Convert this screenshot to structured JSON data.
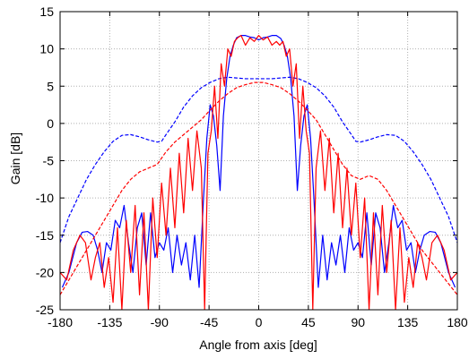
{
  "chart_data": {
    "type": "line",
    "title": "",
    "xlabel": "Angle from axis [deg]",
    "ylabel": "Gain [dB]",
    "xlim": [
      -180,
      180
    ],
    "ylim": [
      -25,
      15
    ],
    "xticks": [
      -180,
      -135,
      -90,
      -45,
      0,
      45,
      90,
      135,
      180
    ],
    "yticks": [
      -25,
      -20,
      -15,
      -10,
      -5,
      0,
      5,
      10,
      15
    ],
    "xtick_labels": [
      "-180",
      "-135",
      "-90",
      "-45",
      "0",
      "45",
      "90",
      "135",
      "180"
    ],
    "ytick_labels": [
      "-25",
      "-20",
      "-15",
      "-10",
      "-5",
      "0",
      "5",
      "10",
      "15"
    ],
    "grid": true,
    "legend": "none",
    "colors": {
      "blue": "#0000ff",
      "red": "#ff0000"
    },
    "series": [
      {
        "color": "#0000ff",
        "style": "solid",
        "x": [
          -178,
          -172,
          -165,
          -160,
          -155,
          -150,
          -146,
          -142,
          -138,
          -134,
          -130,
          -126,
          -122,
          -118,
          -114,
          -110,
          -106,
          -102,
          -98,
          -94,
          -90,
          -86,
          -82,
          -78,
          -74,
          -70,
          -66,
          -62,
          -58,
          -54,
          -50,
          -47,
          -44,
          -41,
          -38,
          -35,
          -32,
          -29,
          -26,
          -23,
          -20,
          -16,
          -12,
          -8,
          -4,
          0,
          4,
          8,
          12,
          16,
          20,
          23,
          26,
          29,
          32,
          35,
          38,
          41,
          44,
          47,
          50,
          54,
          58,
          62,
          66,
          70,
          74,
          78,
          82,
          86,
          90,
          94,
          98,
          102,
          106,
          110,
          114,
          118,
          122,
          126,
          130,
          134,
          138,
          142,
          146,
          150,
          155,
          160,
          165,
          172,
          178
        ],
        "y": [
          -22,
          -20,
          -16,
          -14.6,
          -14.5,
          -15,
          -17,
          -20,
          -16,
          -17,
          -13,
          -14,
          -11,
          -16,
          -20,
          -14,
          -12,
          -19,
          -12,
          -18,
          -16,
          -17,
          -14,
          -20,
          -15,
          -19,
          -16,
          -21,
          -15,
          -22,
          -10,
          -2,
          2.5,
          1,
          -3,
          -9,
          1,
          6,
          9,
          10.5,
          11.5,
          11.8,
          11.8,
          11.6,
          11.5,
          11.2,
          11.5,
          11.6,
          11.8,
          11.8,
          11.4,
          10.5,
          9,
          6,
          1,
          -9,
          -3,
          1,
          2.5,
          -2,
          -10,
          -22,
          -15,
          -21,
          -16,
          -19,
          -15,
          -20,
          -14,
          -17,
          -16,
          -18,
          -12,
          -19,
          -12,
          -14,
          -20,
          -16,
          -11,
          -14,
          -13,
          -17,
          -16,
          -20,
          -17,
          -15,
          -14.5,
          -14.6,
          -16,
          -20,
          -22
        ]
      },
      {
        "color": "#0000ff",
        "style": "dashed",
        "x": [
          -180,
          -172,
          -164,
          -156,
          -148,
          -140,
          -132,
          -124,
          -116,
          -108,
          -100,
          -92,
          -88,
          -84,
          -76,
          -68,
          -60,
          -52,
          -44,
          -36,
          -28,
          -20,
          -12,
          -4,
          0,
          4,
          12,
          20,
          28,
          36,
          44,
          52,
          60,
          68,
          76,
          84,
          88,
          92,
          100,
          108,
          116,
          124,
          132,
          140,
          148,
          156,
          164,
          172,
          180
        ],
        "y": [
          -16,
          -12.5,
          -10,
          -7.5,
          -5.5,
          -3.8,
          -2.4,
          -1.6,
          -1.5,
          -1.8,
          -2.2,
          -2.5,
          -2.4,
          -1.5,
          0.2,
          2.2,
          3.7,
          4.8,
          5.5,
          6.0,
          6.2,
          6.1,
          6.0,
          6.0,
          6.0,
          6.0,
          6.0,
          6.1,
          6.2,
          6.0,
          5.5,
          4.8,
          3.7,
          2.2,
          0.2,
          -1.5,
          -2.4,
          -2.5,
          -2.2,
          -1.8,
          -1.5,
          -1.6,
          -2.4,
          -3.8,
          -5.5,
          -7.5,
          -10,
          -12.5,
          -16
        ]
      },
      {
        "color": "#ff0000",
        "style": "solid",
        "x": [
          -180,
          -174,
          -168,
          -162,
          -157,
          -152,
          -148,
          -144,
          -140,
          -136,
          -132,
          -128,
          -124,
          -120,
          -116,
          -112,
          -108,
          -104,
          -100,
          -96,
          -92,
          -88,
          -84,
          -80,
          -76,
          -72,
          -68,
          -64,
          -60,
          -56,
          -52,
          -49,
          -46,
          -43,
          -40,
          -37,
          -34,
          -31,
          -28,
          -25,
          -22,
          -19,
          -16,
          -12,
          -8,
          -4,
          0,
          4,
          8,
          12,
          16,
          19,
          22,
          25,
          28,
          31,
          34,
          37,
          40,
          43,
          46,
          49,
          52,
          56,
          60,
          64,
          68,
          72,
          76,
          80,
          84,
          88,
          92,
          96,
          100,
          104,
          108,
          112,
          116,
          120,
          124,
          128,
          132,
          136,
          140,
          144,
          148,
          152,
          157,
          162,
          168,
          174,
          180
        ],
        "y": [
          -20,
          -21,
          -17,
          -15,
          -16,
          -21,
          -18,
          -16,
          -22,
          -18,
          -24,
          -14,
          -25,
          -13,
          -20,
          -11,
          -23,
          -12,
          -25,
          -10,
          -18,
          -8,
          -15,
          -6,
          -14,
          -4,
          -12,
          -2,
          -9,
          -1,
          -6,
          -25,
          -4,
          -1,
          5,
          -2,
          8,
          5,
          10,
          9,
          11,
          11.5,
          11.8,
          10.5,
          11.5,
          11.0,
          11.8,
          11.2,
          11.6,
          10.5,
          11.0,
          10.5,
          11,
          9,
          10,
          5,
          8,
          -2,
          5,
          -1,
          -4,
          -25,
          -6,
          -1,
          -9,
          -2,
          -12,
          -4,
          -14,
          -6,
          -15,
          -8,
          -18,
          -10,
          -25,
          -12,
          -23,
          -11,
          -20,
          -13,
          -25,
          -14,
          -24,
          -18,
          -22,
          -16,
          -18,
          -21,
          -16,
          -15,
          -17,
          -21,
          -20
        ]
      },
      {
        "color": "#ff0000",
        "style": "dashed",
        "x": [
          -180,
          -172,
          -164,
          -156,
          -148,
          -140,
          -132,
          -124,
          -116,
          -108,
          -100,
          -92,
          -84,
          -76,
          -68,
          -60,
          -52,
          -44,
          -36,
          -28,
          -20,
          -12,
          -4,
          0,
          4,
          12,
          20,
          28,
          36,
          44,
          52,
          60,
          68,
          76,
          84,
          92,
          100,
          108,
          116,
          124,
          132,
          140,
          148,
          156,
          164,
          172,
          180
        ],
        "y": [
          -23,
          -21,
          -19,
          -17,
          -15,
          -13,
          -11,
          -9,
          -7.5,
          -6.5,
          -6,
          -5.5,
          -3.8,
          -2.5,
          -1.5,
          -0.5,
          0.5,
          1.8,
          3,
          4,
          4.8,
          5.2,
          5.5,
          5.5,
          5.5,
          5.2,
          4.8,
          4,
          3,
          1.8,
          0.5,
          -1.5,
          -3.5,
          -5.5,
          -7,
          -7.5,
          -7,
          -7.5,
          -9,
          -11,
          -13,
          -15,
          -17,
          -18.5,
          -20,
          -21.5,
          -23
        ]
      }
    ]
  }
}
